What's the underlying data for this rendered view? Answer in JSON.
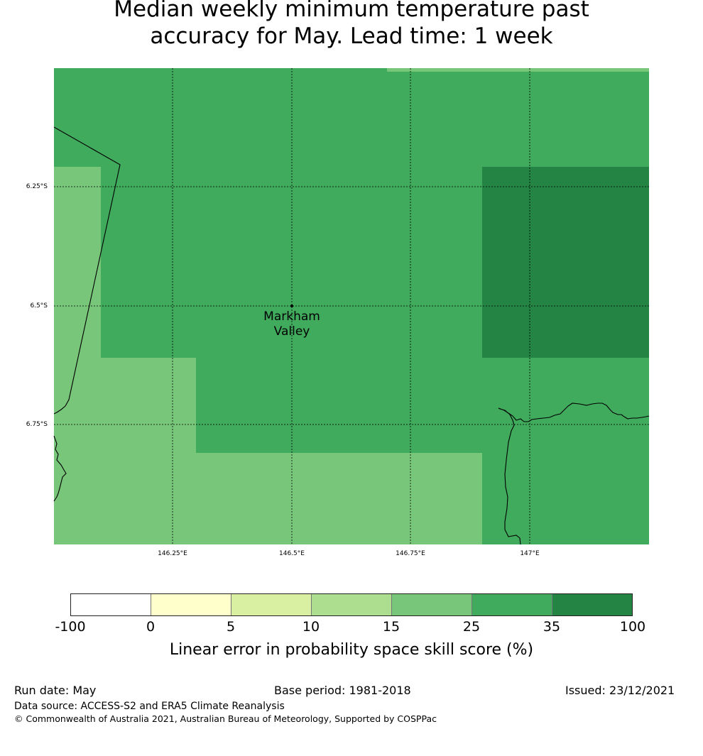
{
  "title": {
    "line1": "Median weekly minimum temperature past",
    "line2": "accuracy for May. Lead time: 1 week"
  },
  "map": {
    "latitude_labels": [
      "6.25°S",
      "6.5°S",
      "6.75°S"
    ],
    "longitude_labels": [
      "146.25°E",
      "146.5°E",
      "146.75°E",
      "147°E"
    ],
    "place": {
      "name_line1": "Markham",
      "name_line2": "Valley"
    },
    "colors": {
      "cat_15_25": "#78c679",
      "cat_25_35": "#41ab5d",
      "cat_35_100": "#238443",
      "coastline": "#000000",
      "gridline": "#000000"
    }
  },
  "legend": {
    "title": "Linear error in probability space skill score (%)",
    "ticks": [
      "-100",
      "0",
      "5",
      "10",
      "15",
      "25",
      "35",
      "100"
    ],
    "colors": [
      "#ffffff",
      "#ffffcc",
      "#d9f0a3",
      "#addd8e",
      "#78c679",
      "#41ab5d",
      "#238443"
    ]
  },
  "footer": {
    "run_date": "Run date: May",
    "base_period": "Base period: 1981-2018",
    "issued": "Issued: 23/12/2021",
    "data_source": "Data source: ACCESS-S2 and ERA5 Climate Reanalysis",
    "copyright": "© Commonwealth of Australia 2021, Australian Bureau of Meteorology, Supported by COSPPac"
  }
}
